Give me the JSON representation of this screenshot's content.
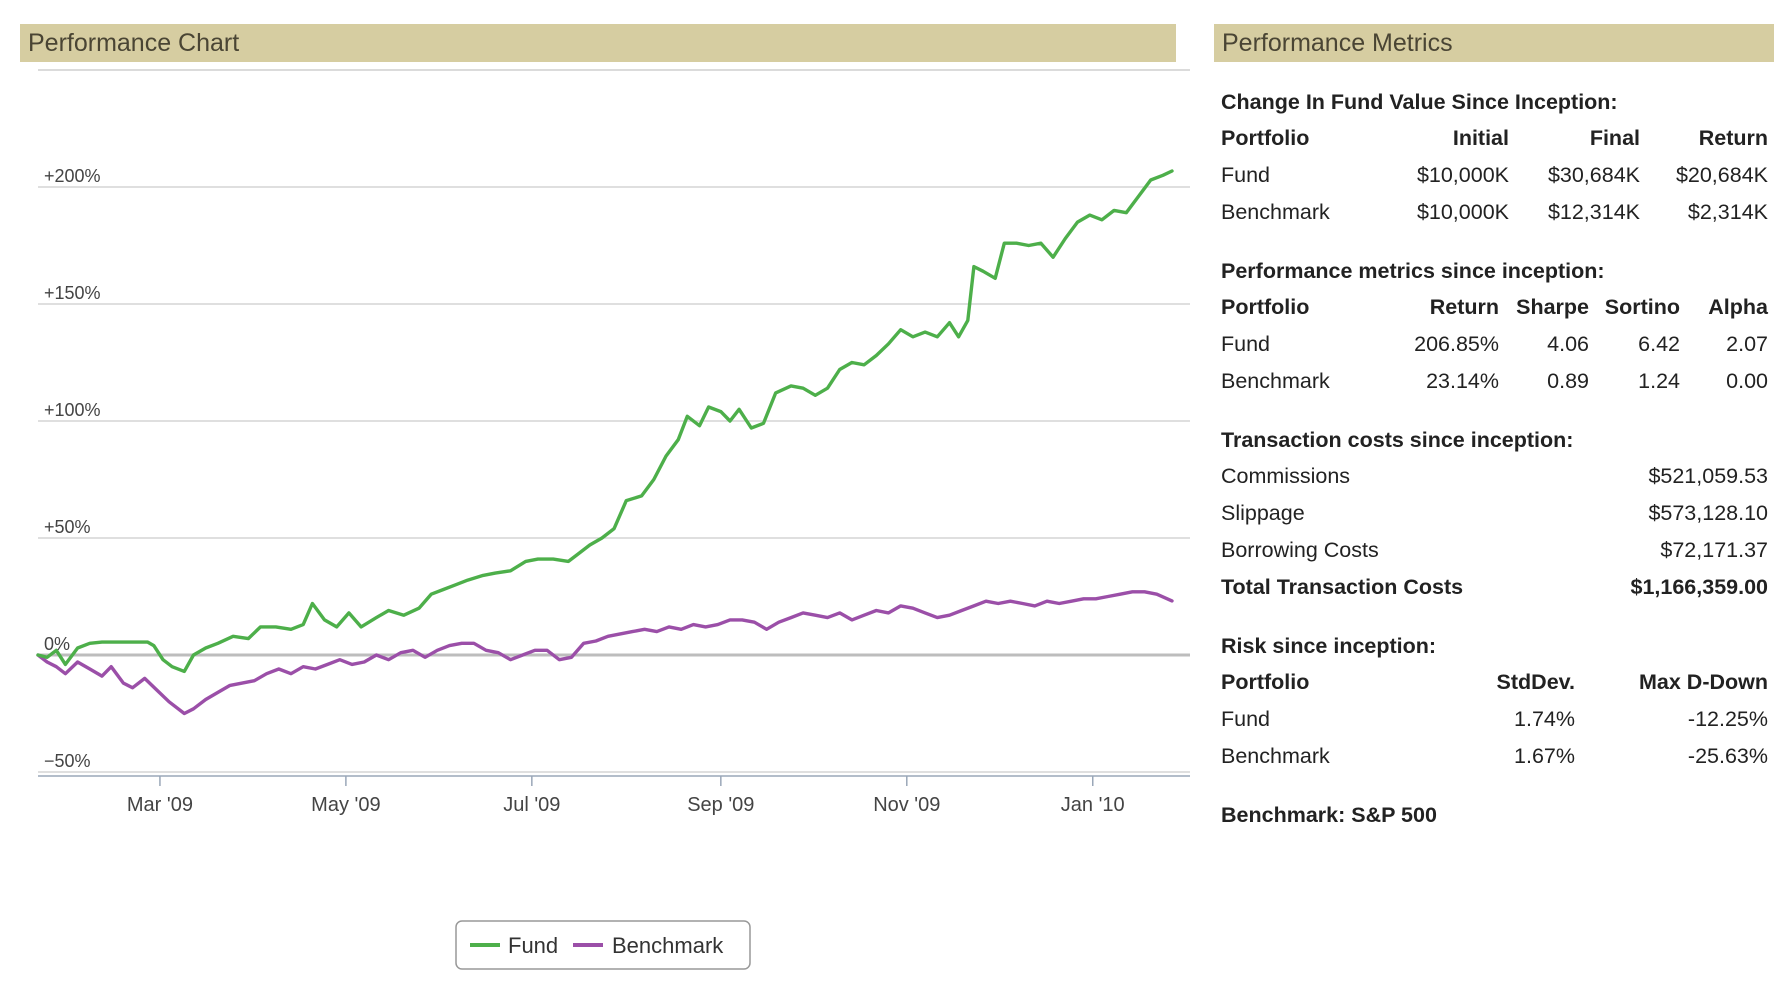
{
  "chart_panel": {
    "title": "Performance Chart"
  },
  "metrics_panel": {
    "title": "Performance Metrics"
  },
  "chart_data": {
    "type": "line",
    "title": "",
    "xlabel": "",
    "ylabel": "",
    "x_ticks": [
      "Mar '09",
      "May '09",
      "Jul '09",
      "Sep '09",
      "Nov '09",
      "Jan '10"
    ],
    "y_ticks": [
      "+200%",
      "+150%",
      "+100%",
      "+50%",
      "0%",
      "−50%"
    ],
    "ylim": [
      -50,
      250
    ],
    "grid": true,
    "legend_position": "bottom",
    "series": [
      {
        "name": "Fund",
        "color": "#4daf4a",
        "points": [
          [
            "2009-01-20",
            0
          ],
          [
            "2009-01-23",
            -1
          ],
          [
            "2009-01-26",
            2
          ],
          [
            "2009-01-29",
            -4
          ],
          [
            "2009-02-02",
            3
          ],
          [
            "2009-02-06",
            5
          ],
          [
            "2009-02-10",
            5.5
          ],
          [
            "2009-02-16",
            5.5
          ],
          [
            "2009-02-20",
            5.5
          ],
          [
            "2009-02-25",
            5.5
          ],
          [
            "2009-02-27",
            4
          ],
          [
            "2009-03-02",
            -2
          ],
          [
            "2009-03-05",
            -5
          ],
          [
            "2009-03-09",
            -7
          ],
          [
            "2009-03-12",
            0
          ],
          [
            "2009-03-16",
            3
          ],
          [
            "2009-03-20",
            5
          ],
          [
            "2009-03-25",
            8
          ],
          [
            "2009-03-30",
            7
          ],
          [
            "2009-04-03",
            12
          ],
          [
            "2009-04-08",
            12
          ],
          [
            "2009-04-13",
            11
          ],
          [
            "2009-04-17",
            13
          ],
          [
            "2009-04-20",
            22
          ],
          [
            "2009-04-24",
            15
          ],
          [
            "2009-04-28",
            12
          ],
          [
            "2009-05-02",
            18
          ],
          [
            "2009-05-06",
            12
          ],
          [
            "2009-05-11",
            16
          ],
          [
            "2009-05-15",
            19
          ],
          [
            "2009-05-20",
            17
          ],
          [
            "2009-05-25",
            20
          ],
          [
            "2009-05-29",
            26
          ],
          [
            "2009-06-02",
            28
          ],
          [
            "2009-06-06",
            30
          ],
          [
            "2009-06-10",
            32
          ],
          [
            "2009-06-15",
            34
          ],
          [
            "2009-06-19",
            35
          ],
          [
            "2009-06-24",
            36
          ],
          [
            "2009-06-29",
            40
          ],
          [
            "2009-07-03",
            41
          ],
          [
            "2009-07-08",
            41
          ],
          [
            "2009-07-13",
            40
          ],
          [
            "2009-07-16",
            43
          ],
          [
            "2009-07-20",
            47
          ],
          [
            "2009-07-24",
            50
          ],
          [
            "2009-07-28",
            54
          ],
          [
            "2009-08-01",
            66
          ],
          [
            "2009-08-06",
            68
          ],
          [
            "2009-08-10",
            75
          ],
          [
            "2009-08-14",
            85
          ],
          [
            "2009-08-18",
            92
          ],
          [
            "2009-08-21",
            102
          ],
          [
            "2009-08-25",
            98
          ],
          [
            "2009-08-28",
            106
          ],
          [
            "2009-09-01",
            104
          ],
          [
            "2009-09-04",
            100
          ],
          [
            "2009-09-07",
            105
          ],
          [
            "2009-09-11",
            97
          ],
          [
            "2009-09-15",
            99
          ],
          [
            "2009-09-19",
            112
          ],
          [
            "2009-09-24",
            115
          ],
          [
            "2009-09-28",
            114
          ],
          [
            "2009-10-02",
            111
          ],
          [
            "2009-10-06",
            114
          ],
          [
            "2009-10-10",
            122
          ],
          [
            "2009-10-14",
            125
          ],
          [
            "2009-10-18",
            124
          ],
          [
            "2009-10-22",
            128
          ],
          [
            "2009-10-26",
            133
          ],
          [
            "2009-10-30",
            139
          ],
          [
            "2009-11-03",
            136
          ],
          [
            "2009-11-07",
            138
          ],
          [
            "2009-11-11",
            136
          ],
          [
            "2009-11-15",
            142
          ],
          [
            "2009-11-18",
            136
          ],
          [
            "2009-11-21",
            143
          ],
          [
            "2009-11-23",
            166
          ],
          [
            "2009-11-26",
            164
          ],
          [
            "2009-11-30",
            161
          ],
          [
            "2009-12-03",
            176
          ],
          [
            "2009-12-07",
            176
          ],
          [
            "2009-12-11",
            175
          ],
          [
            "2009-12-15",
            176
          ],
          [
            "2009-12-19",
            170
          ],
          [
            "2009-12-23",
            178
          ],
          [
            "2009-12-27",
            185
          ],
          [
            "2009-12-31",
            188
          ],
          [
            "2010-01-04",
            186
          ],
          [
            "2010-01-08",
            190
          ],
          [
            "2010-01-12",
            189
          ],
          [
            "2010-01-16",
            196
          ],
          [
            "2010-01-20",
            203
          ],
          [
            "2010-01-24",
            205
          ],
          [
            "2010-01-27",
            206.85
          ]
        ]
      },
      {
        "name": "Benchmark",
        "color": "#9b4fa8",
        "points": [
          [
            "2009-01-20",
            0
          ],
          [
            "2009-01-23",
            -3
          ],
          [
            "2009-01-26",
            -5
          ],
          [
            "2009-01-29",
            -8
          ],
          [
            "2009-02-02",
            -3
          ],
          [
            "2009-02-06",
            -6
          ],
          [
            "2009-02-10",
            -9
          ],
          [
            "2009-02-13",
            -5
          ],
          [
            "2009-02-17",
            -12
          ],
          [
            "2009-02-20",
            -14
          ],
          [
            "2009-02-24",
            -10
          ],
          [
            "2009-02-28",
            -15
          ],
          [
            "2009-03-04",
            -20
          ],
          [
            "2009-03-09",
            -25
          ],
          [
            "2009-03-12",
            -23
          ],
          [
            "2009-03-16",
            -19
          ],
          [
            "2009-03-20",
            -16
          ],
          [
            "2009-03-24",
            -13
          ],
          [
            "2009-03-28",
            -12
          ],
          [
            "2009-04-01",
            -11
          ],
          [
            "2009-04-05",
            -8
          ],
          [
            "2009-04-09",
            -6
          ],
          [
            "2009-04-13",
            -8
          ],
          [
            "2009-04-17",
            -5
          ],
          [
            "2009-04-21",
            -6
          ],
          [
            "2009-04-25",
            -4
          ],
          [
            "2009-04-29",
            -2
          ],
          [
            "2009-05-03",
            -4
          ],
          [
            "2009-05-07",
            -3
          ],
          [
            "2009-05-11",
            0
          ],
          [
            "2009-05-15",
            -2
          ],
          [
            "2009-05-19",
            1
          ],
          [
            "2009-05-23",
            2
          ],
          [
            "2009-05-27",
            -1
          ],
          [
            "2009-05-31",
            2
          ],
          [
            "2009-06-04",
            4
          ],
          [
            "2009-06-08",
            5
          ],
          [
            "2009-06-12",
            5
          ],
          [
            "2009-06-16",
            2
          ],
          [
            "2009-06-20",
            1
          ],
          [
            "2009-06-24",
            -2
          ],
          [
            "2009-06-28",
            0
          ],
          [
            "2009-07-02",
            2
          ],
          [
            "2009-07-06",
            2
          ],
          [
            "2009-07-10",
            -2
          ],
          [
            "2009-07-14",
            -1
          ],
          [
            "2009-07-18",
            5
          ],
          [
            "2009-07-22",
            6
          ],
          [
            "2009-07-26",
            8
          ],
          [
            "2009-07-30",
            9
          ],
          [
            "2009-08-03",
            10
          ],
          [
            "2009-08-07",
            11
          ],
          [
            "2009-08-11",
            10
          ],
          [
            "2009-08-15",
            12
          ],
          [
            "2009-08-19",
            11
          ],
          [
            "2009-08-23",
            13
          ],
          [
            "2009-08-27",
            12
          ],
          [
            "2009-08-31",
            13
          ],
          [
            "2009-09-04",
            15
          ],
          [
            "2009-09-08",
            15
          ],
          [
            "2009-09-12",
            14
          ],
          [
            "2009-09-16",
            11
          ],
          [
            "2009-09-20",
            14
          ],
          [
            "2009-09-24",
            16
          ],
          [
            "2009-09-28",
            18
          ],
          [
            "2009-10-02",
            17
          ],
          [
            "2009-10-06",
            16
          ],
          [
            "2009-10-10",
            18
          ],
          [
            "2009-10-14",
            15
          ],
          [
            "2009-10-18",
            17
          ],
          [
            "2009-10-22",
            19
          ],
          [
            "2009-10-26",
            18
          ],
          [
            "2009-10-30",
            21
          ],
          [
            "2009-11-03",
            20
          ],
          [
            "2009-11-07",
            18
          ],
          [
            "2009-11-11",
            16
          ],
          [
            "2009-11-15",
            17
          ],
          [
            "2009-11-19",
            19
          ],
          [
            "2009-11-23",
            21
          ],
          [
            "2009-11-27",
            23
          ],
          [
            "2009-12-01",
            22
          ],
          [
            "2009-12-05",
            23
          ],
          [
            "2009-12-09",
            22
          ],
          [
            "2009-12-13",
            21
          ],
          [
            "2009-12-17",
            23
          ],
          [
            "2009-12-21",
            22
          ],
          [
            "2009-12-25",
            23
          ],
          [
            "2009-12-29",
            24
          ],
          [
            "2010-01-02",
            24
          ],
          [
            "2010-01-06",
            25
          ],
          [
            "2010-01-10",
            26
          ],
          [
            "2010-01-14",
            27
          ],
          [
            "2010-01-18",
            27
          ],
          [
            "2010-01-22",
            26
          ],
          [
            "2010-01-27",
            23.14
          ]
        ]
      }
    ]
  },
  "metrics": {
    "change_title": "Change In Fund Value Since Inception:",
    "change_headers": [
      "Portfolio",
      "Initial",
      "Final",
      "Return"
    ],
    "change_rows": [
      [
        "Fund",
        "$10,000K",
        "$30,684K",
        "$20,684K"
      ],
      [
        "Benchmark",
        "$10,000K",
        "$12,314K",
        "$2,314K"
      ]
    ],
    "perf_title": "Performance metrics since inception:",
    "perf_headers": [
      "Portfolio",
      "Return",
      "Sharpe",
      "Sortino",
      "Alpha"
    ],
    "perf_rows": [
      [
        "Fund",
        "206.85%",
        "4.06",
        "6.42",
        "2.07"
      ],
      [
        "Benchmark",
        "23.14%",
        "0.89",
        "1.24",
        "0.00"
      ]
    ],
    "tx_title": "Transaction costs since inception:",
    "tx_rows": [
      [
        "Commissions",
        "$521,059.53"
      ],
      [
        "Slippage",
        "$573,128.10"
      ],
      [
        "Borrowing Costs",
        "$72,171.37"
      ]
    ],
    "tx_total": [
      "Total Transaction Costs",
      "$1,166,359.00"
    ],
    "risk_title": "Risk since inception:",
    "risk_headers": [
      "Portfolio",
      "StdDev.",
      "Max D-Down"
    ],
    "risk_rows": [
      [
        "Fund",
        "1.74%",
        "-12.25%"
      ],
      [
        "Benchmark",
        "1.67%",
        "-25.63%"
      ]
    ],
    "benchmark_note": "Benchmark: S&P 500"
  }
}
